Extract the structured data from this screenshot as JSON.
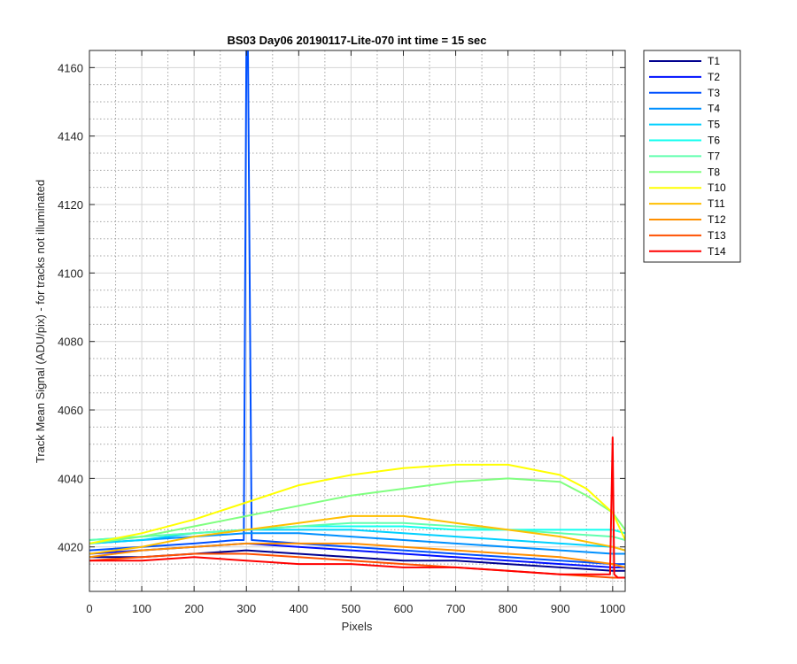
{
  "chart_data": {
    "type": "line",
    "title": "BS03 Day06 20190117-Lite-070 int time = 15 sec",
    "xlabel": "Pixels",
    "ylabel": "Track Mean Signal (ADU/pix) - for tracks not illuminated",
    "xlim": [
      0,
      1024
    ],
    "ylim": [
      4007,
      4165
    ],
    "xticks": [
      0,
      100,
      200,
      300,
      400,
      500,
      600,
      700,
      800,
      900,
      1000
    ],
    "yticks": [
      4020,
      4040,
      4060,
      4080,
      4100,
      4120,
      4140,
      4160
    ],
    "grid": "major solid, minor dotted",
    "legend_position": "outside top-right",
    "series": [
      {
        "name": "T1",
        "color": "#00008f",
        "x": [
          0,
          100,
          200,
          300,
          400,
          500,
          600,
          700,
          800,
          900,
          1000,
          1024
        ],
        "y": [
          4017,
          4017,
          4018,
          4019,
          4018,
          4017,
          4016,
          4016,
          4015,
          4014,
          4013,
          4013
        ]
      },
      {
        "name": "T2",
        "color": "#0010ff",
        "x": [
          0,
          100,
          200,
          300,
          400,
          500,
          600,
          700,
          800,
          900,
          1000,
          1024
        ],
        "y": [
          4018,
          4019,
          4020,
          4021,
          4020,
          4019,
          4018,
          4017,
          4016,
          4015,
          4014,
          4014
        ]
      },
      {
        "name": "T3",
        "color": "#0050ff",
        "x": [
          0,
          100,
          200,
          280,
          295,
          300,
          303,
          310,
          400,
          500,
          600,
          700,
          800,
          900,
          1000,
          1024
        ],
        "y": [
          4019,
          4020,
          4021,
          4022,
          4022,
          4165,
          4165,
          4022,
          4021,
          4020,
          4019,
          4018,
          4017,
          4016,
          4015,
          4015
        ]
      },
      {
        "name": "T4",
        "color": "#0090ff",
        "x": [
          0,
          100,
          200,
          300,
          400,
          500,
          600,
          700,
          800,
          900,
          1000,
          1024
        ],
        "y": [
          4021,
          4022,
          4023,
          4024,
          4024,
          4023,
          4022,
          4021,
          4020,
          4019,
          4018,
          4018
        ]
      },
      {
        "name": "T5",
        "color": "#00d0ff",
        "x": [
          0,
          100,
          200,
          300,
          400,
          500,
          600,
          700,
          800,
          900,
          1000,
          1024
        ],
        "y": [
          4021,
          4022,
          4024,
          4025,
          4025,
          4025,
          4024,
          4023,
          4022,
          4021,
          4020,
          4019
        ]
      },
      {
        "name": "T6",
        "color": "#10ffef",
        "x": [
          0,
          100,
          200,
          300,
          400,
          500,
          600,
          700,
          800,
          900,
          1000,
          1024
        ],
        "y": [
          4022,
          4023,
          4024,
          4025,
          4026,
          4026,
          4026,
          4025,
          4025,
          4025,
          4025,
          4024
        ]
      },
      {
        "name": "T7",
        "color": "#60ffaf",
        "x": [
          0,
          100,
          200,
          300,
          400,
          500,
          600,
          700,
          800,
          900,
          1000,
          1024
        ],
        "y": [
          4022,
          4023,
          4024,
          4025,
          4026,
          4027,
          4027,
          4026,
          4025,
          4024,
          4023,
          4022
        ]
      },
      {
        "name": "T8",
        "color": "#80ff80",
        "x": [
          0,
          100,
          200,
          300,
          400,
          500,
          600,
          700,
          800,
          900,
          950,
          1000,
          1024
        ],
        "y": [
          4021,
          4023,
          4026,
          4029,
          4032,
          4035,
          4037,
          4039,
          4040,
          4039,
          4035,
          4030,
          4025
        ]
      },
      {
        "name": "T10",
        "color": "#ffff00",
        "x": [
          0,
          100,
          200,
          300,
          400,
          500,
          600,
          700,
          800,
          900,
          950,
          1000,
          1024
        ],
        "y": [
          4021,
          4024,
          4028,
          4033,
          4038,
          4041,
          4043,
          4044,
          4044,
          4041,
          4037,
          4030,
          4022
        ]
      },
      {
        "name": "T11",
        "color": "#ffbf00",
        "x": [
          0,
          100,
          200,
          300,
          400,
          500,
          600,
          700,
          800,
          900,
          1000,
          1024
        ],
        "y": [
          4018,
          4020,
          4023,
          4025,
          4027,
          4029,
          4029,
          4027,
          4025,
          4023,
          4020,
          4019
        ]
      },
      {
        "name": "T12",
        "color": "#ff8f00",
        "x": [
          0,
          100,
          200,
          300,
          400,
          500,
          600,
          700,
          800,
          900,
          1000,
          1024
        ],
        "y": [
          4017,
          4019,
          4020,
          4021,
          4021,
          4021,
          4020,
          4019,
          4018,
          4017,
          4015,
          4014
        ]
      },
      {
        "name": "T13",
        "color": "#ff5000",
        "x": [
          0,
          100,
          200,
          300,
          400,
          500,
          600,
          700,
          800,
          900,
          1000,
          1024
        ],
        "y": [
          4016,
          4017,
          4018,
          4018,
          4017,
          4016,
          4015,
          4014,
          4013,
          4012,
          4011,
          4011
        ]
      },
      {
        "name": "T14",
        "color": "#ff0000",
        "x": [
          0,
          100,
          200,
          300,
          400,
          500,
          600,
          700,
          800,
          900,
          995,
          1000,
          1003,
          1010,
          1024
        ],
        "y": [
          4016,
          4016,
          4017,
          4016,
          4015,
          4015,
          4014,
          4014,
          4013,
          4012,
          4012,
          4052,
          4012,
          4011,
          4011
        ]
      }
    ]
  }
}
